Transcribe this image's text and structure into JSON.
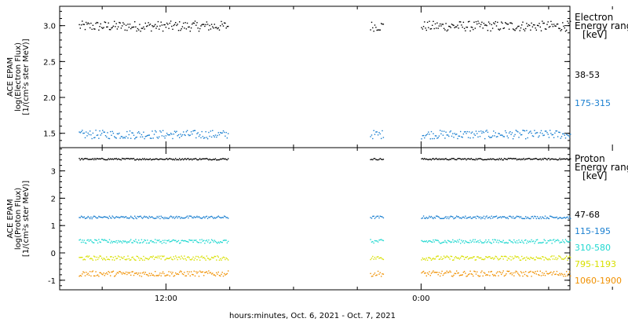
{
  "x_axis": {
    "label": "hours:minutes, Oct.  6, 2021 - Oct.  7, 2021",
    "range_hours": [
      7,
      31
    ],
    "ticks": [
      {
        "hour": 12,
        "label": "12:00"
      },
      {
        "hour": 24,
        "label": "0:00"
      },
      {
        "hour": 36,
        "label": "12:00"
      }
    ],
    "minor_ticks_hours": [
      9,
      15,
      18,
      21,
      27,
      30,
      33,
      39
    ]
  },
  "chart_data": [
    {
      "type": "scatter",
      "ylabel_lines": [
        "ACE EPAM",
        "log(Electron Flux)",
        "[1/(cm²s ster MeV)]"
      ],
      "ylim": [
        1.3,
        3.27
      ],
      "yticks": [
        {
          "v": 1.5,
          "label": "1.5"
        },
        {
          "v": 2.0,
          "label": "2.0"
        },
        {
          "v": 2.5,
          "label": "2.5"
        },
        {
          "v": 3.0,
          "label": "3.0"
        }
      ],
      "legend_title_lines": [
        "Electron",
        "Energy ranges",
        "[keV]"
      ],
      "gap_hours": [
        14.9,
        21.6
      ],
      "segments_hours": [
        [
          7.9,
          14.9
        ],
        [
          21.6,
          22.2
        ],
        [
          24.0,
          31.0
        ]
      ],
      "series": [
        {
          "name": "38-53",
          "color": "#000000",
          "mean": 3.0,
          "spread": 0.07
        },
        {
          "name": "175-315",
          "color": "#1a7fd0",
          "mean": 1.49,
          "spread": 0.06
        }
      ]
    },
    {
      "type": "scatter",
      "ylabel_lines": [
        "ACE EPAM",
        "log(Proton Flux)",
        "[1/(cm²s ster MeV)]"
      ],
      "ylim": [
        -1.35,
        3.85
      ],
      "yticks": [
        {
          "v": -1,
          "label": "-1"
        },
        {
          "v": 0,
          "label": "0"
        },
        {
          "v": 1,
          "label": "1"
        },
        {
          "v": 2,
          "label": "2"
        },
        {
          "v": 3,
          "label": "3"
        }
      ],
      "legend_title_lines": [
        "Proton",
        "Energy ranges",
        "[keV]"
      ],
      "gap_hours": [
        14.9,
        21.6
      ],
      "segments_hours": [
        [
          7.9,
          14.9
        ],
        [
          21.6,
          22.2
        ],
        [
          24.0,
          31.0
        ]
      ],
      "series": [
        {
          "name": "47-68",
          "color": "#000000",
          "mean": 3.45,
          "spread": 0.03
        },
        {
          "name": "115-195",
          "color": "#1a7fd0",
          "mean": 1.32,
          "spread": 0.05
        },
        {
          "name": "310-580",
          "color": "#20d8d0",
          "mean": 0.44,
          "spread": 0.07
        },
        {
          "name": "795-1193",
          "color": "#d8e000",
          "mean": -0.17,
          "spread": 0.08
        },
        {
          "name": "1060-1900",
          "color": "#f09000",
          "mean": -0.74,
          "spread": 0.1
        }
      ]
    }
  ]
}
